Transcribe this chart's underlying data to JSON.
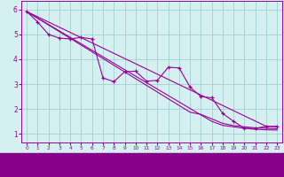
{
  "bg_color": "#d4f0f0",
  "grid_color": "#99cccc",
  "line_color": "#990099",
  "xlabel_bg": "#880088",
  "xlabel_fg": "#ffffff",
  "xlim": [
    -0.5,
    23.5
  ],
  "ylim": [
    0.65,
    6.35
  ],
  "xticks": [
    0,
    1,
    2,
    3,
    4,
    5,
    6,
    7,
    8,
    9,
    10,
    11,
    12,
    13,
    14,
    15,
    16,
    17,
    18,
    19,
    20,
    21,
    22,
    23
  ],
  "yticks": [
    1,
    2,
    3,
    4,
    5,
    6
  ],
  "line_main": [
    5.92,
    5.5,
    5.0,
    4.85,
    4.82,
    4.88,
    4.82,
    3.25,
    3.1,
    3.5,
    3.52,
    3.12,
    3.15,
    3.68,
    3.65,
    2.88,
    2.5,
    2.45,
    1.82,
    1.5,
    1.22,
    1.22,
    1.3,
    1.3
  ],
  "line_reg1": [
    5.92,
    5.66,
    5.4,
    5.14,
    4.88,
    4.62,
    4.36,
    4.1,
    3.84,
    3.58,
    3.32,
    3.06,
    2.8,
    2.54,
    2.28,
    2.02,
    1.76,
    1.5,
    1.34,
    1.28,
    1.22,
    1.18,
    1.16,
    1.15
  ],
  "line_reg2": [
    5.92,
    5.65,
    5.38,
    5.11,
    4.84,
    4.57,
    4.3,
    4.03,
    3.76,
    3.49,
    3.22,
    2.95,
    2.68,
    2.41,
    2.14,
    1.87,
    1.78,
    1.6,
    1.42,
    1.33,
    1.28,
    1.24,
    1.22,
    1.2
  ],
  "line_straight": [
    5.92,
    5.71,
    5.5,
    5.29,
    5.08,
    4.87,
    4.66,
    4.45,
    4.24,
    4.03,
    3.82,
    3.61,
    3.4,
    3.19,
    2.98,
    2.77,
    2.56,
    2.35,
    2.14,
    1.93,
    1.72,
    1.51,
    1.3,
    1.28
  ]
}
